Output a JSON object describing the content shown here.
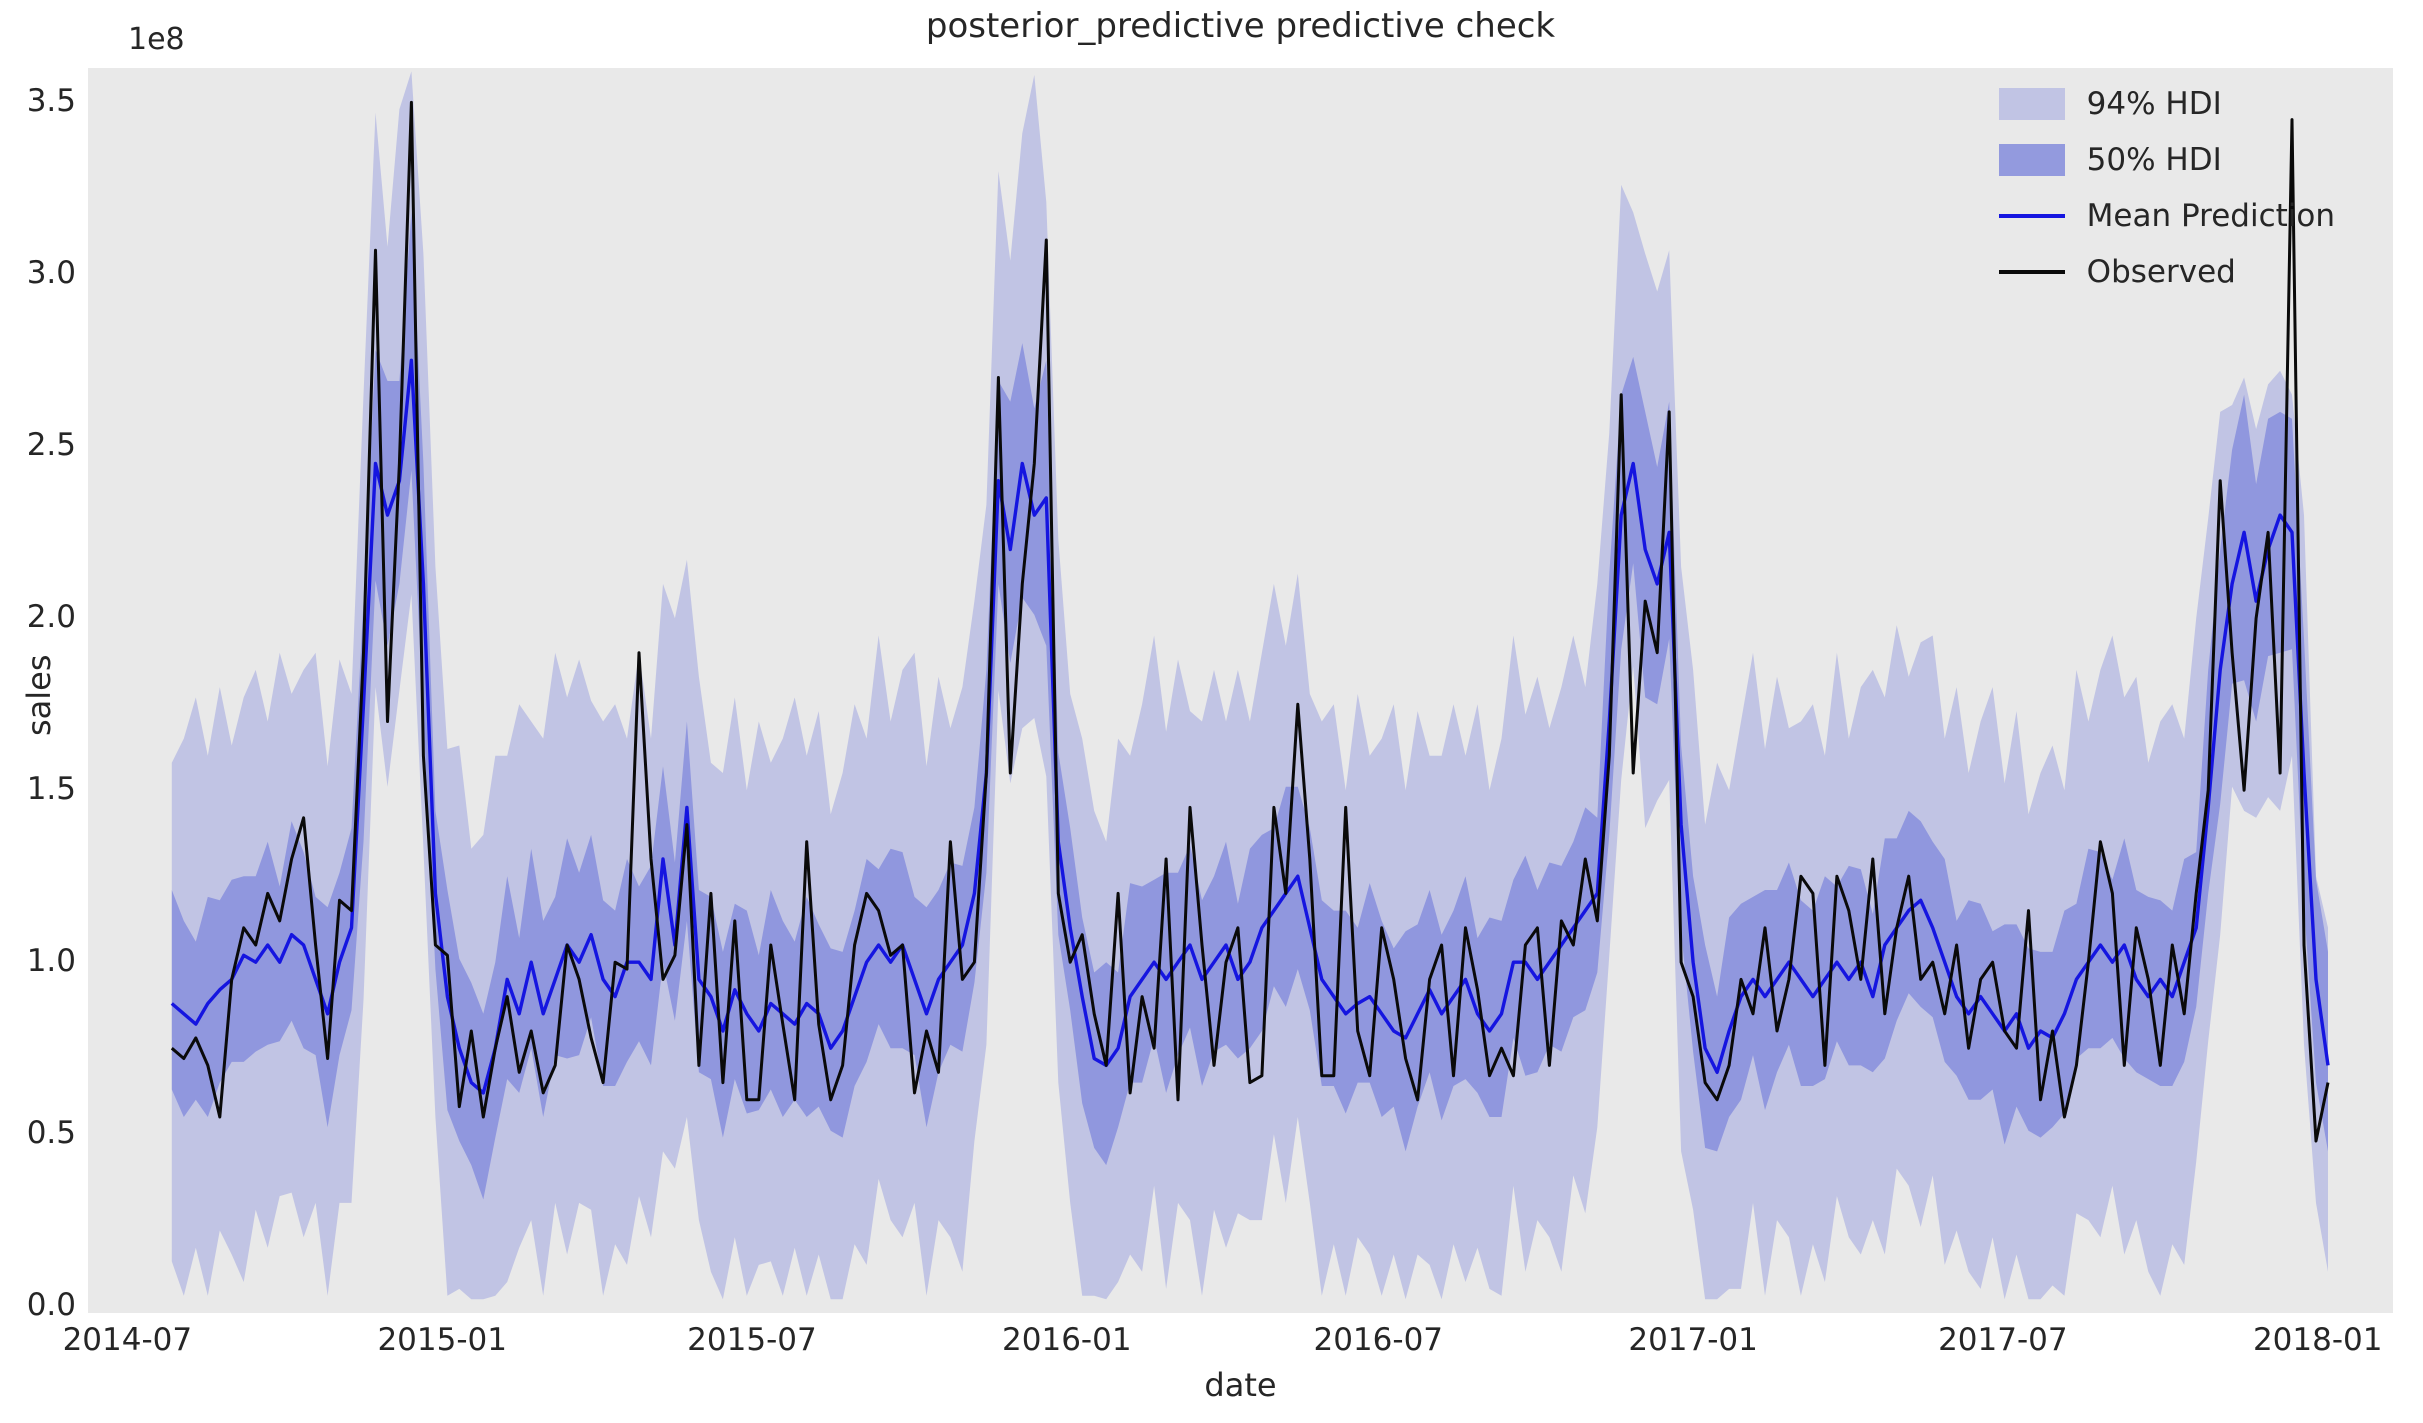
{
  "figure": {
    "title": "posterior_predictive predictive check"
  },
  "axes": {
    "x_label": "date",
    "y_label": "sales",
    "y_offset_label": "1e8",
    "x_tick_labels": [
      "2014-07",
      "2015-01",
      "2015-07",
      "2016-01",
      "2016-07",
      "2017-01",
      "2017-07",
      "2018-01"
    ],
    "x_tick_dates": [
      "2014-07-01",
      "2015-01-01",
      "2015-07-01",
      "2016-01-01",
      "2016-07-01",
      "2017-01-01",
      "2017-07-01",
      "2018-01-01"
    ],
    "y_tick_labels": [
      "0.0",
      "0.5",
      "1.0",
      "1.5",
      "2.0",
      "2.5",
      "3.0",
      "3.5"
    ],
    "y_tick_values": [
      0,
      0.5,
      1.0,
      1.5,
      2.0,
      2.5,
      3.0,
      3.5
    ],
    "x_domain": [
      "2014-06-08",
      "2018-02-14"
    ],
    "y_domain": [
      -0.02,
      3.6
    ]
  },
  "legend": {
    "items": [
      {
        "label": "94% HDI",
        "type": "patch",
        "fill": "rgba(77,89,214,0.25)"
      },
      {
        "label": "50% HDI",
        "type": "patch",
        "fill": "rgba(77,89,214,0.55)"
      },
      {
        "label": "Mean Prediction",
        "type": "line",
        "stroke": "#1515e0"
      },
      {
        "label": "Observed",
        "type": "line",
        "stroke": "#0a0a0a"
      }
    ]
  },
  "colors": {
    "band": "#4d59d6",
    "band_opacity_94": 0.25,
    "band_opacity_50": 0.42,
    "mean_line": "#1515e0",
    "observed_line": "#0a0a0a",
    "plot_background": "#e9e9e9",
    "text": "#262626"
  },
  "chart_data": {
    "type": "line",
    "title": "posterior_predictive predictive check",
    "xlabel": "date",
    "ylabel": "sales",
    "y_unit_multiplier": 100000000,
    "x_start_date": "2014-07-27",
    "x_step_days": 7,
    "xlim": [
      "2014-06-08",
      "2018-02-14"
    ],
    "ylim_1e8": [
      -0.02,
      3.6
    ],
    "legend_position": "upper right",
    "grid": false,
    "series": [
      {
        "key": "hdi94_lo",
        "name": "94% HDI lower",
        "values": [
          0.13,
          0.03,
          0.17,
          0.03,
          0.22,
          0.15,
          0.07,
          0.28,
          0.17,
          0.32,
          0.33,
          0.2,
          0.3,
          0.03,
          0.3,
          0.3,
          0.89,
          1.8,
          1.51,
          1.79,
          2.07,
          1.33,
          0.55,
          0.03,
          0.05,
          0.02,
          0.02,
          0.03,
          0.07,
          0.17,
          0.25,
          0.03,
          0.3,
          0.15,
          0.3,
          0.28,
          0.03,
          0.18,
          0.12,
          0.32,
          0.2,
          0.45,
          0.4,
          0.55,
          0.25,
          0.1,
          0.02,
          0.2,
          0.03,
          0.12,
          0.13,
          0.03,
          0.17,
          0.03,
          0.15,
          0.02,
          0.02,
          0.18,
          0.12,
          0.37,
          0.25,
          0.2,
          0.3,
          0.03,
          0.25,
          0.2,
          0.1,
          0.48,
          0.76,
          1.79,
          1.52,
          1.68,
          1.71,
          1.54,
          0.65,
          0.3,
          0.03,
          0.03,
          0.02,
          0.07,
          0.15,
          0.1,
          0.35,
          0.05,
          0.3,
          0.25,
          0.03,
          0.28,
          0.17,
          0.27,
          0.25,
          0.25,
          0.5,
          0.3,
          0.55,
          0.3,
          0.03,
          0.18,
          0.03,
          0.2,
          0.15,
          0.03,
          0.15,
          0.02,
          0.15,
          0.12,
          0.02,
          0.18,
          0.07,
          0.17,
          0.05,
          0.03,
          0.35,
          0.1,
          0.25,
          0.2,
          0.1,
          0.38,
          0.27,
          0.52,
          1.02,
          1.53,
          1.86,
          1.39,
          1.47,
          1.53,
          0.45,
          0.28,
          0.02,
          0.02,
          0.05,
          0.05,
          0.3,
          0.03,
          0.25,
          0.2,
          0.03,
          0.18,
          0.07,
          0.32,
          0.2,
          0.15,
          0.25,
          0.15,
          0.4,
          0.35,
          0.23,
          0.38,
          0.12,
          0.22,
          0.1,
          0.05,
          0.2,
          0.02,
          0.15,
          0.02,
          0.02,
          0.06,
          0.03,
          0.27,
          0.25,
          0.2,
          0.35,
          0.15,
          0.25,
          0.1,
          0.03,
          0.18,
          0.12,
          0.42,
          0.77,
          1.08,
          1.51,
          1.44,
          1.42,
          1.48,
          1.44,
          1.6,
          0.76,
          0.3,
          0.1
        ]
      },
      {
        "key": "hdi94_hi",
        "name": "94% HDI upper",
        "values": [
          1.58,
          1.65,
          1.77,
          1.6,
          1.8,
          1.63,
          1.77,
          1.85,
          1.7,
          1.9,
          1.78,
          1.85,
          1.9,
          1.57,
          1.88,
          1.78,
          2.65,
          3.47,
          3.08,
          3.48,
          3.59,
          3.06,
          2.15,
          1.62,
          1.63,
          1.33,
          1.37,
          1.6,
          1.6,
          1.75,
          1.7,
          1.65,
          1.9,
          1.77,
          1.88,
          1.76,
          1.7,
          1.75,
          1.65,
          1.9,
          1.65,
          2.1,
          2.0,
          2.17,
          1.83,
          1.58,
          1.55,
          1.77,
          1.5,
          1.7,
          1.58,
          1.65,
          1.77,
          1.6,
          1.73,
          1.43,
          1.55,
          1.75,
          1.65,
          1.95,
          1.7,
          1.85,
          1.9,
          1.57,
          1.83,
          1.68,
          1.8,
          2.05,
          2.33,
          3.3,
          3.04,
          3.41,
          3.58,
          3.21,
          2.23,
          1.78,
          1.65,
          1.44,
          1.35,
          1.65,
          1.6,
          1.75,
          1.95,
          1.67,
          1.88,
          1.73,
          1.7,
          1.85,
          1.7,
          1.85,
          1.7,
          1.9,
          2.1,
          1.92,
          2.13,
          1.78,
          1.7,
          1.75,
          1.5,
          1.78,
          1.6,
          1.65,
          1.75,
          1.5,
          1.73,
          1.6,
          1.6,
          1.75,
          1.6,
          1.75,
          1.5,
          1.65,
          1.95,
          1.72,
          1.83,
          1.68,
          1.8,
          1.95,
          1.8,
          2.1,
          2.54,
          3.26,
          3.18,
          3.06,
          2.95,
          3.07,
          2.15,
          1.85,
          1.4,
          1.58,
          1.5,
          1.7,
          1.9,
          1.62,
          1.83,
          1.68,
          1.7,
          1.75,
          1.6,
          1.9,
          1.65,
          1.8,
          1.85,
          1.77,
          1.98,
          1.83,
          1.93,
          1.95,
          1.65,
          1.8,
          1.55,
          1.7,
          1.8,
          1.52,
          1.73,
          1.43,
          1.55,
          1.63,
          1.5,
          1.85,
          1.7,
          1.85,
          1.95,
          1.77,
          1.83,
          1.58,
          1.7,
          1.75,
          1.65,
          2.0,
          2.29,
          2.6,
          2.62,
          2.7,
          2.55,
          2.68,
          2.72,
          2.65,
          2.3,
          1.25,
          1.1
        ]
      },
      {
        "key": "hdi50_lo",
        "name": "50% HDI lower",
        "values": [
          0.63,
          0.55,
          0.6,
          0.55,
          0.65,
          0.71,
          0.71,
          0.74,
          0.76,
          0.77,
          0.83,
          0.75,
          0.73,
          0.52,
          0.73,
          0.86,
          1.35,
          2.11,
          1.92,
          2.1,
          2.43,
          1.71,
          0.98,
          0.57,
          0.48,
          0.41,
          0.31,
          0.49,
          0.66,
          0.62,
          0.75,
          0.55,
          0.73,
          0.72,
          0.73,
          0.84,
          0.64,
          0.64,
          0.71,
          0.77,
          0.7,
          1.0,
          0.83,
          1.12,
          0.68,
          0.66,
          0.49,
          0.66,
          0.56,
          0.57,
          0.63,
          0.55,
          0.6,
          0.55,
          0.58,
          0.51,
          0.49,
          0.64,
          0.71,
          0.82,
          0.75,
          0.75,
          0.73,
          0.52,
          0.68,
          0.76,
          0.74,
          0.94,
          1.26,
          2.1,
          1.87,
          2.06,
          2.01,
          1.92,
          1.08,
          0.86,
          0.59,
          0.46,
          0.41,
          0.52,
          0.65,
          0.65,
          0.78,
          0.62,
          0.73,
          0.81,
          0.64,
          0.74,
          0.76,
          0.72,
          0.75,
          0.8,
          0.93,
          0.87,
          0.98,
          0.86,
          0.64,
          0.64,
          0.56,
          0.65,
          0.65,
          0.55,
          0.58,
          0.45,
          0.58,
          0.68,
          0.54,
          0.64,
          0.66,
          0.62,
          0.55,
          0.55,
          0.78,
          0.67,
          0.68,
          0.76,
          0.74,
          0.84,
          0.86,
          0.97,
          1.37,
          1.91,
          2.16,
          1.77,
          1.75,
          1.94,
          1.09,
          0.74,
          0.46,
          0.45,
          0.55,
          0.6,
          0.73,
          0.57,
          0.68,
          0.76,
          0.64,
          0.64,
          0.66,
          0.77,
          0.7,
          0.7,
          0.68,
          0.72,
          0.83,
          0.91,
          0.87,
          0.84,
          0.71,
          0.67,
          0.6,
          0.6,
          0.63,
          0.47,
          0.58,
          0.51,
          0.49,
          0.52,
          0.56,
          0.72,
          0.75,
          0.75,
          0.78,
          0.72,
          0.68,
          0.66,
          0.64,
          0.64,
          0.71,
          0.87,
          1.2,
          1.46,
          1.81,
          1.82,
          1.7,
          1.89,
          1.9,
          1.91,
          1.17,
          0.65,
          0.45
        ]
      },
      {
        "key": "hdi50_hi",
        "name": "50% HDI upper",
        "values": [
          1.21,
          1.12,
          1.06,
          1.19,
          1.18,
          1.24,
          1.25,
          1.25,
          1.35,
          1.22,
          1.41,
          1.32,
          1.19,
          1.16,
          1.26,
          1.39,
          2.05,
          2.78,
          2.69,
          2.69,
          3.18,
          2.45,
          1.44,
          1.21,
          1.01,
          0.94,
          0.85,
          1.0,
          1.25,
          1.07,
          1.33,
          1.12,
          1.19,
          1.36,
          1.26,
          1.37,
          1.18,
          1.15,
          1.3,
          1.22,
          1.28,
          1.57,
          1.29,
          1.7,
          1.21,
          1.19,
          1.03,
          1.17,
          1.15,
          1.02,
          1.21,
          1.12,
          1.06,
          1.19,
          1.11,
          1.04,
          1.03,
          1.15,
          1.3,
          1.27,
          1.33,
          1.32,
          1.19,
          1.16,
          1.21,
          1.29,
          1.28,
          1.45,
          1.85,
          2.69,
          2.63,
          2.8,
          2.61,
          2.75,
          1.61,
          1.39,
          1.13,
          0.97,
          1.0,
          0.97,
          1.23,
          1.22,
          1.24,
          1.26,
          1.26,
          1.34,
          1.18,
          1.25,
          1.35,
          1.17,
          1.33,
          1.37,
          1.39,
          1.51,
          1.51,
          1.39,
          1.18,
          1.15,
          1.15,
          1.1,
          1.23,
          1.12,
          1.04,
          1.09,
          1.11,
          1.21,
          1.08,
          1.15,
          1.25,
          1.07,
          1.13,
          1.12,
          1.24,
          1.31,
          1.21,
          1.29,
          1.28,
          1.35,
          1.45,
          1.42,
          2.13,
          2.65,
          2.76,
          2.6,
          2.44,
          2.63,
          1.63,
          1.25,
          1.05,
          0.9,
          1.13,
          1.17,
          1.19,
          1.21,
          1.21,
          1.29,
          1.18,
          1.15,
          1.25,
          1.22,
          1.28,
          1.27,
          1.14,
          1.36,
          1.36,
          1.44,
          1.41,
          1.35,
          1.3,
          1.12,
          1.18,
          1.17,
          1.09,
          1.11,
          1.11,
          1.04,
          1.03,
          1.03,
          1.15,
          1.17,
          1.33,
          1.32,
          1.24,
          1.36,
          1.21,
          1.19,
          1.18,
          1.15,
          1.3,
          1.32,
          1.85,
          2.2,
          2.49,
          2.65,
          2.39,
          2.58,
          2.6,
          2.58,
          1.94,
          1.24,
          1.03
        ]
      },
      {
        "key": "mean",
        "name": "Mean Prediction",
        "values": [
          0.88,
          0.85,
          0.82,
          0.88,
          0.92,
          0.95,
          1.02,
          1.0,
          1.05,
          1.0,
          1.08,
          1.05,
          0.95,
          0.85,
          1.0,
          1.1,
          1.75,
          2.45,
          2.3,
          2.4,
          2.75,
          2.1,
          1.2,
          0.9,
          0.75,
          0.65,
          0.62,
          0.75,
          0.95,
          0.85,
          1.0,
          0.85,
          0.95,
          1.05,
          1.0,
          1.08,
          0.95,
          0.9,
          1.0,
          1.0,
          0.95,
          1.3,
          1.05,
          1.45,
          0.95,
          0.9,
          0.8,
          0.92,
          0.85,
          0.8,
          0.88,
          0.85,
          0.82,
          0.88,
          0.85,
          0.75,
          0.8,
          0.9,
          1.0,
          1.05,
          1.0,
          1.05,
          0.95,
          0.85,
          0.95,
          1.0,
          1.05,
          1.2,
          1.55,
          2.4,
          2.2,
          2.45,
          2.3,
          2.35,
          1.35,
          1.1,
          0.9,
          0.72,
          0.7,
          0.75,
          0.9,
          0.95,
          1.0,
          0.95,
          1.0,
          1.05,
          0.95,
          1.0,
          1.05,
          0.95,
          1.0,
          1.1,
          1.15,
          1.2,
          1.25,
          1.1,
          0.95,
          0.9,
          0.85,
          0.88,
          0.9,
          0.85,
          0.8,
          0.78,
          0.85,
          0.92,
          0.85,
          0.9,
          0.95,
          0.85,
          0.8,
          0.85,
          1.0,
          1.0,
          0.95,
          1.0,
          1.05,
          1.1,
          1.15,
          1.2,
          1.7,
          2.3,
          2.45,
          2.2,
          2.1,
          2.25,
          1.4,
          1.0,
          0.75,
          0.68,
          0.8,
          0.9,
          0.95,
          0.9,
          0.95,
          1.0,
          0.95,
          0.9,
          0.95,
          1.0,
          0.95,
          1.0,
          0.9,
          1.05,
          1.1,
          1.15,
          1.18,
          1.1,
          1.0,
          0.9,
          0.85,
          0.9,
          0.85,
          0.8,
          0.85,
          0.75,
          0.8,
          0.78,
          0.85,
          0.95,
          1.0,
          1.05,
          1.0,
          1.05,
          0.95,
          0.9,
          0.95,
          0.9,
          1.0,
          1.1,
          1.45,
          1.85,
          2.1,
          2.25,
          2.05,
          2.2,
          2.3,
          2.25,
          1.55,
          0.95,
          0.7
        ]
      },
      {
        "key": "observed",
        "name": "Observed",
        "values": [
          0.75,
          0.72,
          0.78,
          0.7,
          0.55,
          0.95,
          1.1,
          1.05,
          1.2,
          1.12,
          1.3,
          1.42,
          1.05,
          0.72,
          1.18,
          1.15,
          1.9,
          3.07,
          1.7,
          2.45,
          3.5,
          1.6,
          1.05,
          1.02,
          0.58,
          0.8,
          0.55,
          0.75,
          0.9,
          0.68,
          0.8,
          0.62,
          0.7,
          1.05,
          0.95,
          0.78,
          0.65,
          1.0,
          0.98,
          1.9,
          1.3,
          0.95,
          1.02,
          1.4,
          0.7,
          1.2,
          0.65,
          1.12,
          0.6,
          0.6,
          1.05,
          0.82,
          0.6,
          1.35,
          0.82,
          0.6,
          0.7,
          1.05,
          1.2,
          1.15,
          1.02,
          1.05,
          0.62,
          0.8,
          0.68,
          1.35,
          0.95,
          1.0,
          1.55,
          2.7,
          1.55,
          2.1,
          2.45,
          3.1,
          1.2,
          1.0,
          1.08,
          0.85,
          0.7,
          1.2,
          0.62,
          0.9,
          0.75,
          1.3,
          0.6,
          1.45,
          1.05,
          0.7,
          1.0,
          1.1,
          0.65,
          0.67,
          1.45,
          1.2,
          1.75,
          1.3,
          0.67,
          0.67,
          1.45,
          0.8,
          0.67,
          1.1,
          0.95,
          0.72,
          0.6,
          0.95,
          1.05,
          0.67,
          1.1,
          0.92,
          0.67,
          0.75,
          0.67,
          1.05,
          1.1,
          0.7,
          1.12,
          1.05,
          1.3,
          1.12,
          1.6,
          2.65,
          1.55,
          2.05,
          1.9,
          2.6,
          1.0,
          0.9,
          0.65,
          0.6,
          0.7,
          0.95,
          0.85,
          1.1,
          0.8,
          0.95,
          1.25,
          1.2,
          0.7,
          1.25,
          1.15,
          0.95,
          1.3,
          0.85,
          1.1,
          1.25,
          0.95,
          1.0,
          0.85,
          1.05,
          0.75,
          0.95,
          1.0,
          0.8,
          0.75,
          1.15,
          0.6,
          0.8,
          0.55,
          0.7,
          1.0,
          1.35,
          1.2,
          0.7,
          1.1,
          0.95,
          0.7,
          1.05,
          0.85,
          1.2,
          1.5,
          2.4,
          1.9,
          1.5,
          2.0,
          2.25,
          1.55,
          3.45,
          1.05,
          0.48,
          0.65
        ]
      }
    ]
  }
}
